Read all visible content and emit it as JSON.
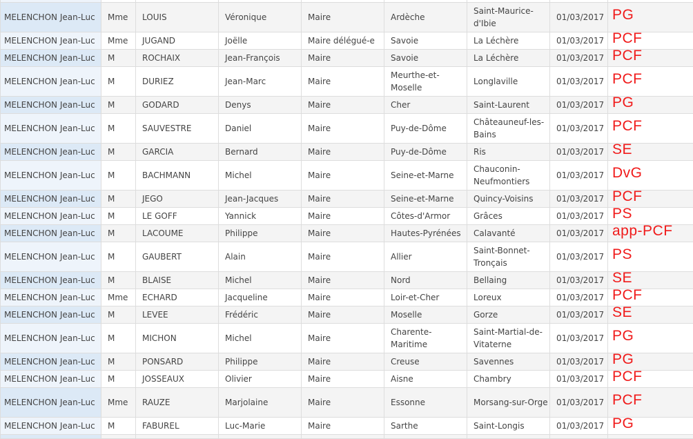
{
  "rows": [
    {
      "candidate": "MELENCHON Jean-Luc",
      "civility": "Mme",
      "last_name": "LOUIS",
      "first_name": "Véronique",
      "mandate": "Maire",
      "department": "Ardèche",
      "commune": "Saint-Maurice-d'Ibie",
      "date": "01/03/2017",
      "party": "PG"
    },
    {
      "candidate": "MELENCHON Jean-Luc",
      "civility": "Mme",
      "last_name": "JUGAND",
      "first_name": "Joëlle",
      "mandate": "Maire délégué-e",
      "department": "Savoie",
      "commune": "La Léchère",
      "date": "01/03/2017",
      "party": "PCF"
    },
    {
      "candidate": "MELENCHON Jean-Luc",
      "civility": "M",
      "last_name": "ROCHAIX",
      "first_name": "Jean-François",
      "mandate": "Maire",
      "department": "Savoie",
      "commune": "La Léchère",
      "date": "01/03/2017",
      "party": "PCF"
    },
    {
      "candidate": "MELENCHON Jean-Luc",
      "civility": "M",
      "last_name": "DURIEZ",
      "first_name": "Jean-Marc",
      "mandate": "Maire",
      "department": "Meurthe-et-Moselle",
      "commune": "Longlaville",
      "date": "01/03/2017",
      "party": "PCF"
    },
    {
      "candidate": "MELENCHON Jean-Luc",
      "civility": "M",
      "last_name": "GODARD",
      "first_name": "Denys",
      "mandate": "Maire",
      "department": "Cher",
      "commune": "Saint-Laurent",
      "date": "01/03/2017",
      "party": "PG"
    },
    {
      "candidate": "MELENCHON Jean-Luc",
      "civility": "M",
      "last_name": "SAUVESTRE",
      "first_name": "Daniel",
      "mandate": "Maire",
      "department": "Puy-de-Dôme",
      "commune": "Châteauneuf-les-Bains",
      "date": "01/03/2017",
      "party": "PCF"
    },
    {
      "candidate": "MELENCHON Jean-Luc",
      "civility": "M",
      "last_name": "GARCIA",
      "first_name": "Bernard",
      "mandate": "Maire",
      "department": "Puy-de-Dôme",
      "commune": "Ris",
      "date": "01/03/2017",
      "party": "SE"
    },
    {
      "candidate": "MELENCHON Jean-Luc",
      "civility": "M",
      "last_name": "BACHMANN",
      "first_name": "Michel",
      "mandate": "Maire",
      "department": "Seine-et-Marne",
      "commune": "Chauconin-Neufmontiers",
      "date": "01/03/2017",
      "party": "DvG"
    },
    {
      "candidate": "MELENCHON Jean-Luc",
      "civility": "M",
      "last_name": "JEGO",
      "first_name": "Jean-Jacques",
      "mandate": "Maire",
      "department": "Seine-et-Marne",
      "commune": "Quincy-Voisins",
      "date": "01/03/2017",
      "party": "PCF"
    },
    {
      "candidate": "MELENCHON Jean-Luc",
      "civility": "M",
      "last_name": "LE GOFF",
      "first_name": "Yannick",
      "mandate": "Maire",
      "department": "Côtes-d'Armor",
      "commune": "Grâces",
      "date": "01/03/2017",
      "party": "PS"
    },
    {
      "candidate": "MELENCHON Jean-Luc",
      "civility": "M",
      "last_name": "LACOUME",
      "first_name": "Philippe",
      "mandate": "Maire",
      "department": "Hautes-Pyrénées",
      "commune": "Calavanté",
      "date": "01/03/2017",
      "party": "app-PCF"
    },
    {
      "candidate": "MELENCHON Jean-Luc",
      "civility": "M",
      "last_name": "GAUBERT",
      "first_name": "Alain",
      "mandate": "Maire",
      "department": "Allier",
      "commune": "Saint-Bonnet-Tronçais",
      "date": "01/03/2017",
      "party": "PS"
    },
    {
      "candidate": "MELENCHON Jean-Luc",
      "civility": "M",
      "last_name": "BLAISE",
      "first_name": "Michel",
      "mandate": "Maire",
      "department": "Nord",
      "commune": "Bellaing",
      "date": "01/03/2017",
      "party": "SE"
    },
    {
      "candidate": "MELENCHON Jean-Luc",
      "civility": "Mme",
      "last_name": "ECHARD",
      "first_name": "Jacqueline",
      "mandate": "Maire",
      "department": "Loir-et-Cher",
      "commune": "Loreux",
      "date": "01/03/2017",
      "party": "PCF"
    },
    {
      "candidate": "MELENCHON Jean-Luc",
      "civility": "M",
      "last_name": "LEVEE",
      "first_name": "Frédéric",
      "mandate": "Maire",
      "department": "Moselle",
      "commune": "Gorze",
      "date": "01/03/2017",
      "party": "SE"
    },
    {
      "candidate": "MELENCHON Jean-Luc",
      "civility": "M",
      "last_name": "MICHON",
      "first_name": "Michel",
      "mandate": "Maire",
      "department": "Charente-Maritime",
      "commune": "Saint-Martial-de-Vitaterne",
      "date": "01/03/2017",
      "party": "PG"
    },
    {
      "candidate": "MELENCHON Jean-Luc",
      "civility": "M",
      "last_name": "PONSARD",
      "first_name": "Philippe",
      "mandate": "Maire",
      "department": "Creuse",
      "commune": "Savennes",
      "date": "01/03/2017",
      "party": "PG"
    },
    {
      "candidate": "MELENCHON Jean-Luc",
      "civility": "M",
      "last_name": "JOSSEAUX",
      "first_name": "Olivier",
      "mandate": "Maire",
      "department": "Aisne",
      "commune": "Chambry",
      "date": "01/03/2017",
      "party": "PCF"
    },
    {
      "candidate": "MELENCHON Jean-Luc",
      "civility": "Mme",
      "last_name": "RAUZE",
      "first_name": "Marjolaine",
      "mandate": "Maire",
      "department": "Essonne",
      "commune": "Morsang-sur-Orge",
      "date": "01/03/2017",
      "party": "PCF"
    },
    {
      "candidate": "MELENCHON Jean-Luc",
      "civility": "M",
      "last_name": "FABUREL",
      "first_name": "Luc-Marie",
      "mandate": "Maire",
      "department": "Sarthe",
      "commune": "Saint-Longis",
      "date": "01/03/2017",
      "party": "PG"
    }
  ],
  "colors": {
    "annotation": "#f01a1a",
    "candidate_cell": "#dce9f6",
    "stripe": "#f4f4f4"
  }
}
